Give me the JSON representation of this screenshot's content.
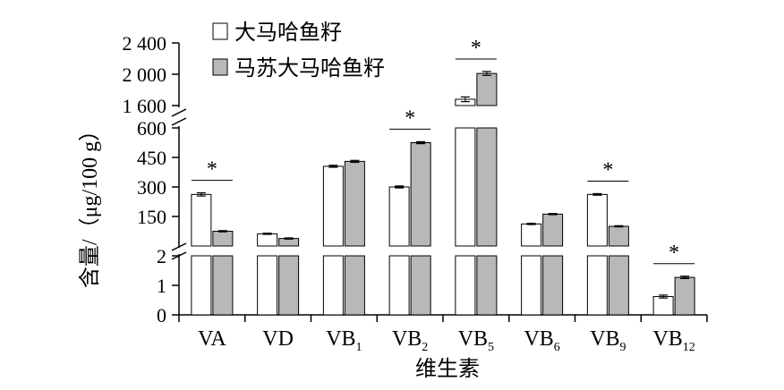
{
  "chart_data": {
    "type": "bar",
    "title": "",
    "xlabel": "维生素",
    "ylabel": "含量/（μg/100 g）",
    "categories": [
      {
        "main": "VA",
        "sub": ""
      },
      {
        "main": "VD",
        "sub": ""
      },
      {
        "main": "VB",
        "sub": "1"
      },
      {
        "main": "VB",
        "sub": "2"
      },
      {
        "main": "VB",
        "sub": "5"
      },
      {
        "main": "VB",
        "sub": "6"
      },
      {
        "main": "VB",
        "sub": "9"
      },
      {
        "main": "VB",
        "sub": "12"
      }
    ],
    "series": [
      {
        "name": "大马哈鱼籽",
        "color": "#ffffff",
        "values": [
          262,
          62,
          405,
          300,
          1680,
          112,
          262,
          0.62
        ],
        "errors": [
          8,
          3,
          5,
          5,
          30,
          3,
          4,
          0.05
        ]
      },
      {
        "name": "马苏大马哈鱼籽",
        "color": "#b8b8b8",
        "values": [
          75,
          38,
          430,
          525,
          2010,
          162,
          100,
          1.27
        ],
        "errors": [
          3,
          3,
          5,
          5,
          25,
          3,
          3,
          0.04
        ]
      }
    ],
    "significance": [
      "*",
      "",
      "",
      "*",
      "*",
      "",
      "*",
      "*"
    ],
    "axis_segments": [
      {
        "range": [
          0,
          2
        ],
        "ticks": [
          "0",
          "1",
          "2"
        ]
      },
      {
        "range": [
          0,
          600
        ],
        "ticks": [
          "150",
          "300",
          "450",
          "600"
        ]
      },
      {
        "range": [
          1600,
          2400
        ],
        "ticks": [
          "1 600",
          "2 000",
          "2 400"
        ]
      }
    ],
    "legend_position": "top-left",
    "grid": false
  }
}
